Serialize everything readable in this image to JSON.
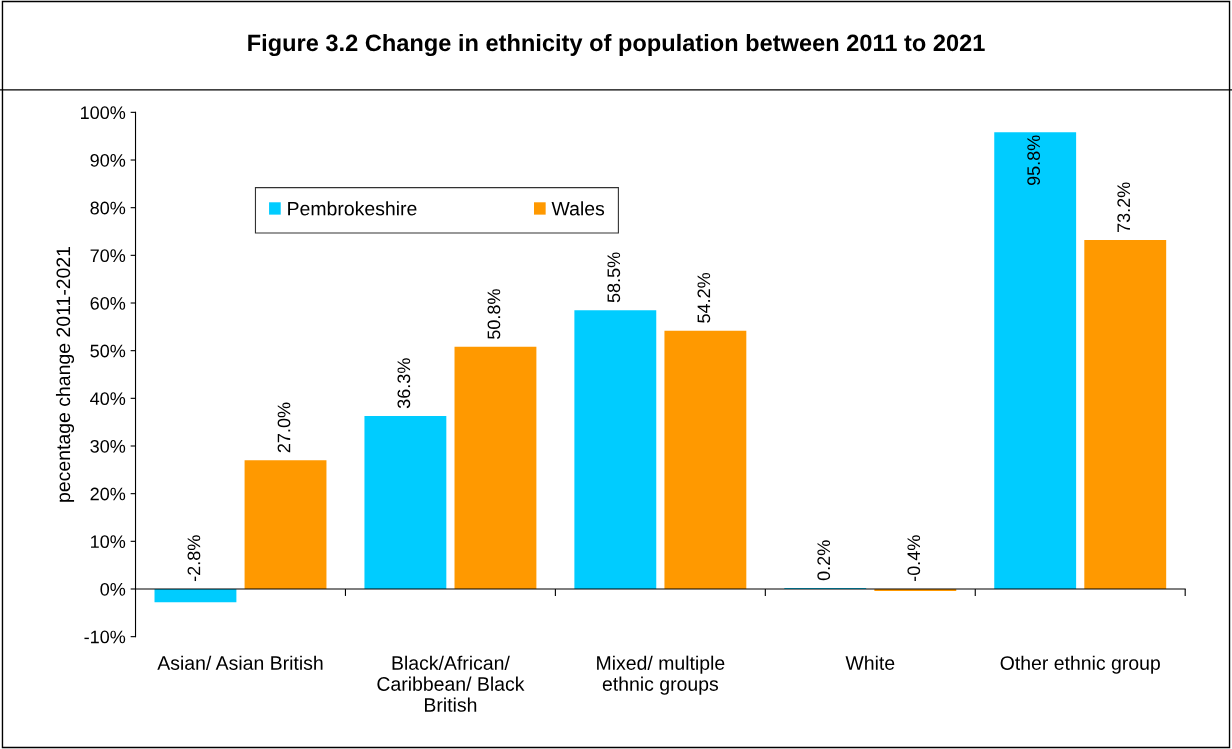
{
  "chart_data": {
    "type": "bar",
    "title": "Figure 3.2 Change in ethnicity of population between 2011 to 2021",
    "ylabel": "pecentage change 2011-2021",
    "categories": [
      "Asian/ Asian British",
      "Black/African/\nCaribbean/ Black\nBritish",
      "Mixed/ multiple\nethnic groups",
      "White",
      "Other ethnic group"
    ],
    "series": [
      {
        "name": "Pembrokeshire",
        "color": "#00ccff",
        "values": [
          -2.8,
          36.3,
          58.5,
          0.2,
          95.8
        ],
        "value_labels": [
          "-2.8%",
          "36.3%",
          "58.5%",
          "0.2%",
          "95.8%"
        ]
      },
      {
        "name": "Wales",
        "color": "#ff9900",
        "values": [
          27.0,
          50.8,
          54.2,
          -0.4,
          73.2
        ],
        "value_labels": [
          "27.0%",
          "50.8%",
          "54.2%",
          "-0.4%",
          "73.2%"
        ]
      }
    ],
    "ylim": [
      -10,
      100
    ],
    "yticks": [
      {
        "value": -10,
        "label": "-10%"
      },
      {
        "value": 0,
        "label": "0%"
      },
      {
        "value": 10,
        "label": "10%"
      },
      {
        "value": 20,
        "label": "20%"
      },
      {
        "value": 30,
        "label": "30%"
      },
      {
        "value": 40,
        "label": "40%"
      },
      {
        "value": 50,
        "label": "50%"
      },
      {
        "value": 60,
        "label": "60%"
      },
      {
        "value": 70,
        "label": "70%"
      },
      {
        "value": 80,
        "label": "80%"
      },
      {
        "value": 90,
        "label": "90%"
      },
      {
        "value": 100,
        "label": "100%"
      }
    ],
    "legend": "top left"
  }
}
